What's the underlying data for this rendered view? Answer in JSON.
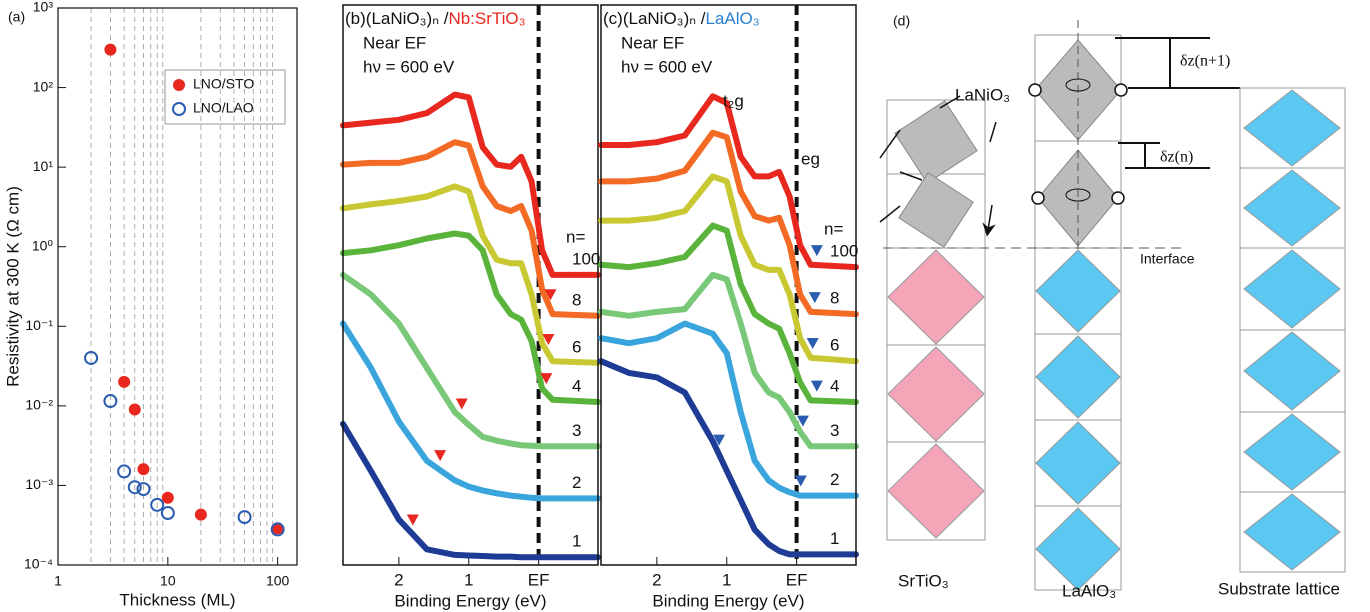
{
  "chart_data": [
    {
      "type": "scatter",
      "panel_label": "(a)",
      "xlabel": "Thickness (ML)",
      "ylabel": "Resistivity at 300 K (Ω cm)",
      "xscale": "log",
      "yscale": "log",
      "xlim": [
        1,
        150
      ],
      "ylim": [
        0.0001,
        1000
      ],
      "xticks": [
        1,
        10,
        100
      ],
      "xminor": [
        2,
        3,
        4,
        5,
        6,
        7,
        8,
        9,
        20,
        30,
        40,
        50,
        60,
        70,
        80,
        90
      ],
      "yticks": [
        {
          "value": 0.0001,
          "label": "10⁻⁴"
        },
        {
          "value": 0.001,
          "label": "10⁻³"
        },
        {
          "value": 0.01,
          "label": "10⁻²"
        },
        {
          "value": 0.1,
          "label": "10⁻¹"
        },
        {
          "value": 1,
          "label": "10⁰"
        },
        {
          "value": 10,
          "label": "10¹"
        },
        {
          "value": 100,
          "label": "10²"
        },
        {
          "value": 1000,
          "label": "10³"
        }
      ],
      "legend": "top-right",
      "series": [
        {
          "name": "LNO/STO",
          "color": "#e8281e",
          "marker": "filled",
          "x": [
            3,
            4,
            5,
            6,
            10,
            20,
            100
          ],
          "values": [
            300,
            0.02,
            0.009,
            0.0016,
            0.0007,
            0.00043,
            0.00029
          ]
        },
        {
          "name": "LNO/LAO",
          "color": "#2a5db0",
          "marker": "open",
          "x": [
            2,
            3,
            4,
            5,
            6,
            8,
            10,
            50,
            100
          ],
          "values": [
            0.04,
            0.0115,
            0.0015,
            0.00095,
            0.0009,
            0.00057,
            0.00045,
            0.0004,
            0.00028
          ]
        }
      ]
    },
    {
      "type": "line",
      "panel_label": "(b)",
      "title": "(LaNiO₃)ₙ /",
      "title_substrate": "Nb:SrTiO₃",
      "substrate_color": "#e8281e",
      "annotations": [
        "Near EF",
        "hν = 600 eV"
      ],
      "n_label": "n=",
      "xlabel": "Binding Energy (eV)",
      "xlim": [
        2.8,
        -0.85
      ],
      "ylim": [
        0,
        100
      ],
      "xticks": [
        2,
        1,
        {
          "value": 0,
          "label": "EF"
        }
      ],
      "ef_line": true,
      "marker_color": "#e8281e",
      "x": [
        2.8,
        2.4,
        2.0,
        1.6,
        1.2,
        1.0,
        0.8,
        0.6,
        0.4,
        0.25,
        0.1,
        -0.05,
        -0.2,
        -0.85
      ],
      "series": [
        {
          "name": "1",
          "color": "#1e3c96",
          "marker_x": 1.8,
          "values": [
            25.2,
            16.8,
            8.1,
            2.8,
            1.8,
            1.7,
            1.6,
            1.5,
            1.5,
            1.4,
            1.4,
            1.4,
            1.4,
            1.4
          ]
        },
        {
          "name": "2",
          "color": "#3aa5dc",
          "marker_x": 1.41,
          "values": [
            43.1,
            35.2,
            25.6,
            18.6,
            15.1,
            14.0,
            13.3,
            12.8,
            12.4,
            12.2,
            12.0,
            11.9,
            11.9,
            11.9
          ]
        },
        {
          "name": "3",
          "color": "#78c878",
          "marker_x": 1.1,
          "values": [
            51.8,
            48.3,
            43.1,
            35.2,
            27.3,
            25.0,
            22.9,
            22.2,
            21.7,
            21.4,
            21.3,
            21.2,
            21.2,
            21.2
          ]
        },
        {
          "name": "4",
          "color": "#5ab43c",
          "marker_x": -0.11,
          "values": [
            55.7,
            56.2,
            57.1,
            58.3,
            59.2,
            58.8,
            56.2,
            48.3,
            44.8,
            43.8,
            40.0,
            31.5,
            29.5,
            29.1
          ]
        },
        {
          "name": "6",
          "color": "#c8c832",
          "marker_x": -0.14,
          "values": [
            63.7,
            64.4,
            65.0,
            65.8,
            67.6,
            66.7,
            58.8,
            54.5,
            53.9,
            53.9,
            48.3,
            39.6,
            36.4,
            36.1
          ]
        },
        {
          "name": "8",
          "color": "#f26a24",
          "marker_x": -0.17,
          "values": [
            71.5,
            71.8,
            71.8,
            72.9,
            75.5,
            74.9,
            67.6,
            64.1,
            63.2,
            64.1,
            59.7,
            49.2,
            44.8,
            44.5
          ]
        },
        {
          "name": "100",
          "color": "#e8281e",
          "marker_x": null,
          "values": [
            78.5,
            79.0,
            79.5,
            80.7,
            84.0,
            83.5,
            74.6,
            71.5,
            71.1,
            72.9,
            68.5,
            56.2,
            51.8,
            51.8
          ]
        }
      ]
    },
    {
      "type": "line",
      "panel_label": "(c)",
      "title": "(LaNiO₃)ₙ /",
      "title_substrate": "LaAlO₃",
      "substrate_color": "#2a7fd0",
      "annotations": [
        "Near EF",
        "hν = 600 eV",
        "t₂g",
        "eg"
      ],
      "n_label": "n=",
      "xlabel": "Binding Energy (eV)",
      "xlim": [
        2.8,
        -0.85
      ],
      "ylim": [
        0,
        100
      ],
      "xticks": [
        2,
        1,
        {
          "value": 0,
          "label": "EF"
        }
      ],
      "ef_line": true,
      "marker_color": "#2a5db0",
      "x": [
        2.8,
        2.4,
        2.0,
        1.6,
        1.2,
        1.0,
        0.8,
        0.6,
        0.4,
        0.25,
        0.1,
        -0.05,
        -0.2,
        -0.85
      ],
      "series": [
        {
          "name": "1",
          "color": "#1e3c96",
          "marker_x": 1.11,
          "values": [
            36.4,
            34.3,
            33.5,
            30.8,
            22.1,
            16.8,
            11.6,
            6.3,
            3.7,
            2.5,
            1.9,
            1.9,
            1.9,
            1.9
          ]
        },
        {
          "name": "2",
          "color": "#3aa5dc",
          "marker_x": -0.06,
          "values": [
            40.5,
            39.6,
            40.5,
            43.1,
            41.3,
            37.8,
            27.3,
            18.6,
            15.1,
            13.8,
            13.0,
            12.4,
            12.4,
            12.4
          ]
        },
        {
          "name": "3",
          "color": "#78c878",
          "marker_x": -0.09,
          "values": [
            45.2,
            44.5,
            45.2,
            45.7,
            51.8,
            51.0,
            43.1,
            34.3,
            30.8,
            29.9,
            27.3,
            23.8,
            21.2,
            21.2
          ]
        },
        {
          "name": "4",
          "color": "#5ab43c",
          "marker_x": -0.29,
          "values": [
            53.6,
            53.2,
            53.9,
            55.0,
            60.6,
            59.7,
            50.1,
            44.8,
            43.1,
            42.2,
            37.8,
            32.6,
            29.4,
            29.1
          ]
        },
        {
          "name": "6",
          "color": "#c8c832",
          "marker_x": -0.23,
          "values": [
            61.5,
            61.5,
            62.0,
            63.2,
            69.4,
            68.5,
            58.8,
            53.6,
            52.7,
            52.7,
            48.3,
            40.5,
            37.0,
            36.4
          ]
        },
        {
          "name": "8",
          "color": "#f26a24",
          "marker_x": -0.26,
          "values": [
            68.5,
            68.5,
            69.0,
            70.4,
            77.2,
            76.4,
            66.7,
            62.3,
            61.5,
            62.0,
            57.1,
            48.3,
            45.2,
            44.8
          ]
        },
        {
          "name": "100",
          "color": "#e8281e",
          "marker_x": -0.29,
          "values": [
            75.0,
            75.0,
            75.5,
            76.7,
            83.7,
            82.5,
            72.9,
            69.4,
            69.4,
            70.2,
            65.8,
            57.1,
            53.6,
            53.2
          ]
        }
      ]
    }
  ],
  "diagram": {
    "panel_label": "(d)",
    "film": "LaNiO₃",
    "left_substrate": "SrTiO₃",
    "middle_substrate": "LaAlO₃",
    "right_substrate": "Substrate lattice",
    "interface": "Interface",
    "dz_top": "δz(n+1)",
    "dz_bottom": "δz(n)"
  }
}
